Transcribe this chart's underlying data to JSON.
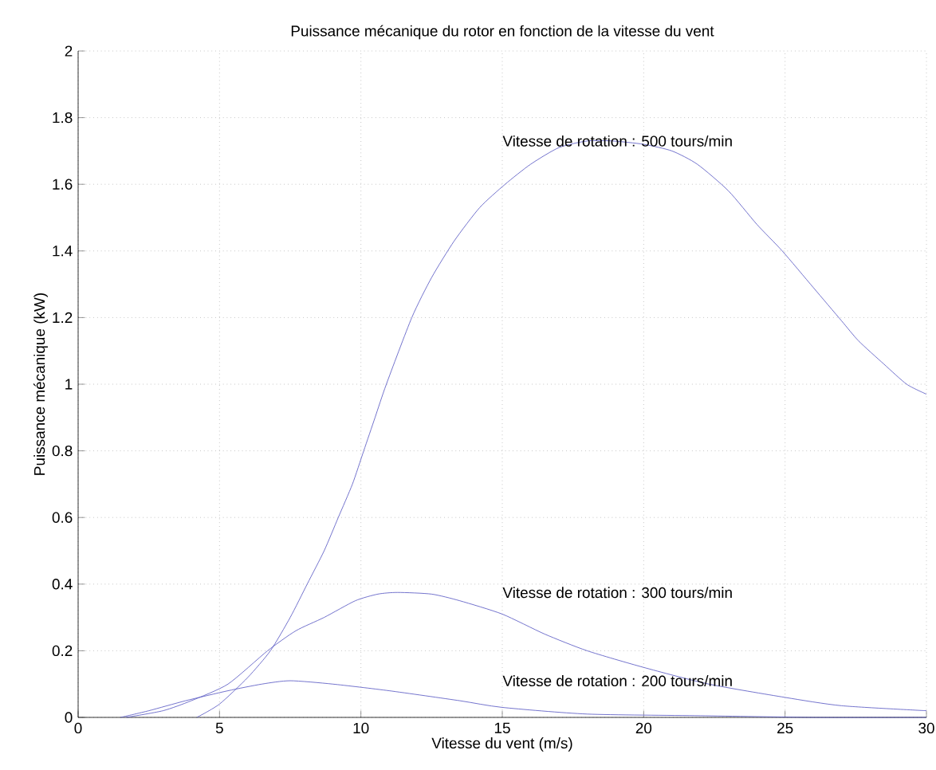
{
  "chart_data": {
    "type": "line",
    "title": "Puissance mécanique du rotor en fonction de la vitesse du vent",
    "xlabel": "Vitesse du vent (m/s)",
    "ylabel": "Puissance mécanique (kW)",
    "xlim": [
      0,
      30
    ],
    "ylim": [
      0,
      2
    ],
    "xticks": [
      0,
      5,
      10,
      15,
      20,
      25,
      30
    ],
    "yticks": [
      0,
      0.2,
      0.4,
      0.6,
      0.8,
      1,
      1.2,
      1.4,
      1.6,
      1.8,
      2
    ],
    "grid": true,
    "line_style": "solid",
    "series": [
      {
        "color": "#5050c0",
        "x": [
          4.2,
          5,
          6,
          6.8,
          7.5,
          8.1,
          8.7,
          9.2,
          9.7,
          10.1,
          10.5,
          10.9,
          11.8,
          12.5,
          13.3,
          14.2,
          15.1,
          16,
          17,
          18,
          18.9,
          20,
          21,
          21.9,
          23,
          24,
          24.9,
          26,
          27,
          27.6,
          28.5,
          29.3,
          30
        ],
        "values": [
          0,
          0.04,
          0.12,
          0.2,
          0.3,
          0.4,
          0.5,
          0.6,
          0.7,
          0.8,
          0.9,
          1,
          1.2,
          1.32,
          1.43,
          1.53,
          1.6,
          1.66,
          1.71,
          1.73,
          1.73,
          1.72,
          1.7,
          1.66,
          1.58,
          1.48,
          1.4,
          1.29,
          1.19,
          1.13,
          1.06,
          1,
          0.97
        ]
      },
      {
        "color": "#5050c0",
        "x": [
          1.7,
          3,
          4,
          5.3,
          6.7,
          7.7,
          8.7,
          9.8,
          10.6,
          11.3,
          12.5,
          13.5,
          15,
          16.5,
          18,
          20,
          22.3,
          25,
          27,
          30
        ],
        "values": [
          0,
          0.02,
          0.05,
          0.1,
          0.2,
          0.26,
          0.3,
          0.35,
          0.37,
          0.375,
          0.37,
          0.35,
          0.31,
          0.25,
          0.2,
          0.15,
          0.1,
          0.06,
          0.035,
          0.02
        ]
      },
      {
        "color": "#5050c0",
        "x": [
          1.5,
          2.5,
          3.8,
          5.3,
          6.5,
          7.5,
          9,
          11,
          13.5,
          15,
          18,
          22,
          26,
          30
        ],
        "values": [
          0,
          0.02,
          0.05,
          0.08,
          0.1,
          0.11,
          0.1,
          0.08,
          0.05,
          0.03,
          0.01,
          0.005,
          0,
          0
        ]
      }
    ],
    "annotations": [
      "Vitesse de rotation : 500 tours/min",
      "Vitesse de rotation : 300 tours/min",
      "Vitesse de rotation : 200 tours/min"
    ]
  }
}
